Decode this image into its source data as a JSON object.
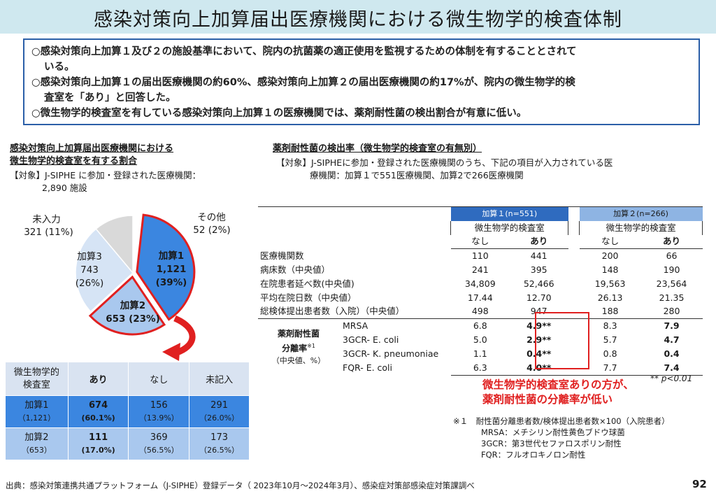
{
  "title": "感染対策向上加算届出医療機関における微生物学的検査体制",
  "summary": [
    "○感染対策向上加算１及び２の施設基準において、院内の抗菌薬の適正使用を監視するための体制を有することとされて",
    "いる。",
    "○感染対策向上加算１の届出医療機関の約60%、感染対策向上加算２の届出医療機関の約17%が、院内の微生物学的検",
    "査室を「あり」と回答した。",
    "○微生物学的検査室を有している感染対策向上加算１の医療機関では、薬剤耐性菌の検出割合が有意に低い。"
  ],
  "left": {
    "title_line1": "感染対策向上加算届出医療機関における",
    "title_line2": "微生物学的検査室を有する割合",
    "target_line1": "【対象】J-SIPHE に参加・登録された医療機関：",
    "target_line2": "2,890 施設",
    "pie_labels": {
      "k1_name": "加算1",
      "k1_count": "1,121",
      "k1_pct": "(39%)",
      "k2": "加算2",
      "k2_val": "653 (23%)",
      "k3_name": "加算3",
      "k3_count": "743",
      "k3_pct": "(26%)",
      "uninput_name": "未入力",
      "uninput_val": "321 (11%)",
      "other_name": "その他",
      "other_val": "52 (2%)"
    },
    "table": {
      "h_col0_1": "微生物学的",
      "h_col0_2": "検査室",
      "h_col1": "あり",
      "h_col2": "なし",
      "h_col3": "未記入",
      "r1_name": "加算1",
      "r1_sub": "（1,121）",
      "r1_c1": "674",
      "r1_c1p": "(60.1%)",
      "r1_c2": "156",
      "r1_c2p": "（13.9%）",
      "r1_c3": "291",
      "r1_c3p": "（26.0%）",
      "r2_name": "加算2",
      "r2_sub": "（653）",
      "r2_c1": "111",
      "r2_c1p": "(17.0%)",
      "r2_c2": "369",
      "r2_c2p": "（56.5%）",
      "r2_c3": "173",
      "r2_c3p": "（26.5%）"
    }
  },
  "right": {
    "title": "薬剤耐性菌の検出率（微生物学的検査室の有無別）",
    "target_line1": "【対象】J-SIPHEに参加・登録された医療機関のうち、下記の項目が入力されている医",
    "target_line2": "療機関：加算１で551医療機関、加算2で266医療機関",
    "hdr_k1": "加算１(n=551)",
    "hdr_k2": "加算２(n=266)",
    "hdr_lab": "微生物学的検査室",
    "hdr_no": "なし",
    "hdr_yes": "あり",
    "rows": [
      {
        "label": "医療機関数",
        "v": [
          "110",
          "441",
          "200",
          "66"
        ]
      },
      {
        "label": "病床数（中央値）",
        "v": [
          "241",
          "395",
          "148",
          "190"
        ]
      },
      {
        "label": "在院患者延べ数(中央値)",
        "v": [
          "34,809",
          "52,466",
          "19,563",
          "23,564"
        ]
      },
      {
        "label": "平均在院日数（中央値）",
        "v": [
          "17.44",
          "12.70",
          "26.13",
          "21.35"
        ]
      },
      {
        "label": "総検体提出患者数（入院）（中央値）",
        "v": [
          "498",
          "947",
          "188",
          "280"
        ]
      }
    ],
    "amr_label1": "薬剤耐性菌",
    "amr_label2": "分離率",
    "amr_sup": "※1",
    "amr_label3": "（中央値、%）",
    "amr_rows": [
      {
        "name": "MRSA",
        "v": [
          "6.8",
          "4.9**",
          "8.3",
          "7.9"
        ]
      },
      {
        "name": "3GCR- E. coli",
        "v": [
          "5.0",
          "2.9**",
          "5.7",
          "4.7"
        ]
      },
      {
        "name": "3GCR- K. pneumoniae",
        "v": [
          "1.1",
          "0.4**",
          "0.8",
          "0.4"
        ]
      },
      {
        "name": "FQR- E. coli",
        "v": [
          "6.3",
          "4.0**",
          "7.7",
          "7.4"
        ]
      }
    ],
    "pnote": "** p<0.01",
    "message_line1": "微生物学的検査室ありの方が、",
    "message_line2": "薬剤耐性菌の分離率が低い",
    "footnotes": [
      "※１　耐性菌分離患者数/検体提出患者数×100（入院患者）",
      "MRSA：メチシリン耐性黄色ブドウ球菌",
      "3GCR：第3世代セファロスポリン耐性",
      "FQR：フルオロキノロン耐性"
    ]
  },
  "source": "出典：感染対策連携共通プラットフォーム（J-SIPHE）登録データ（ 2023年10月～2024年3月）、感染症対策部感染症対策課調べ",
  "page_number": "92",
  "chart_data": {
    "type": "pie",
    "title": "",
    "slices": [
      {
        "label": "加算1",
        "value": 1121,
        "percent": 39,
        "color": "#3b86e0"
      },
      {
        "label": "加算2",
        "value": 653,
        "percent": 23,
        "color": "#a9c8ee"
      },
      {
        "label": "加算3",
        "value": 743,
        "percent": 26,
        "color": "#d6e4f5"
      },
      {
        "label": "未入力",
        "value": 321,
        "percent": 11,
        "color": "#d9d9d9"
      },
      {
        "label": "その他",
        "value": 52,
        "percent": 2,
        "color": "#ffffff"
      }
    ]
  }
}
